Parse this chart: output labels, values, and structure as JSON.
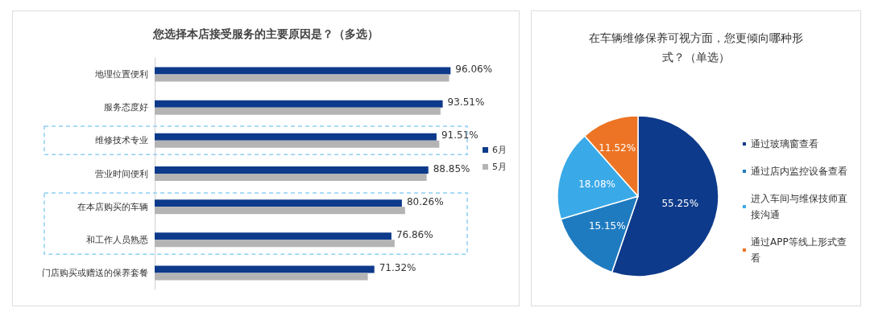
{
  "chart_data": [
    {
      "type": "bar",
      "orientation": "horizontal",
      "title": "您选择本店接受服务的主要原因是？（多选）",
      "categories": [
        "地理位置便利",
        "服务态度好",
        "维修技术专业",
        "营业时间便利",
        "在本店购买的车辆",
        "和工作人员熟悉",
        "门店购买或赠送的保养套餐"
      ],
      "series": [
        {
          "name": "6月",
          "color": "#0d3a8a",
          "values": [
            96.06,
            93.51,
            91.51,
            88.85,
            80.26,
            76.86,
            71.32
          ],
          "value_labels": [
            "96.06%",
            "93.51%",
            "91.51%",
            "88.85%",
            "80.26%",
            "76.86%",
            "71.32%"
          ]
        },
        {
          "name": "5月",
          "color": "#b4b4b4",
          "values": [
            95.6,
            92.8,
            92.4,
            88.3,
            81.3,
            77.9,
            69.2
          ]
        }
      ],
      "tick_labels": "y",
      "legend": "right",
      "grid": false
    },
    {
      "type": "pie",
      "title": "在车辆维修保养可视方面，您更倾向哪种形式？（单选）",
      "categories": [
        "通过玻璃窗查看",
        "通过店内监控设备查看",
        "进入车间与维保技师直接沟通",
        "通过APP等线上形式查看"
      ],
      "values": [
        55.25,
        15.15,
        18.08,
        11.52
      ],
      "value_labels": [
        "55.25%",
        "15.15%",
        "18.08%",
        "11.52%"
      ],
      "colors": [
        "#0d3a8a",
        "#1f7bc0",
        "#3aa9e8",
        "#ec7424"
      ],
      "legend": "right"
    }
  ]
}
